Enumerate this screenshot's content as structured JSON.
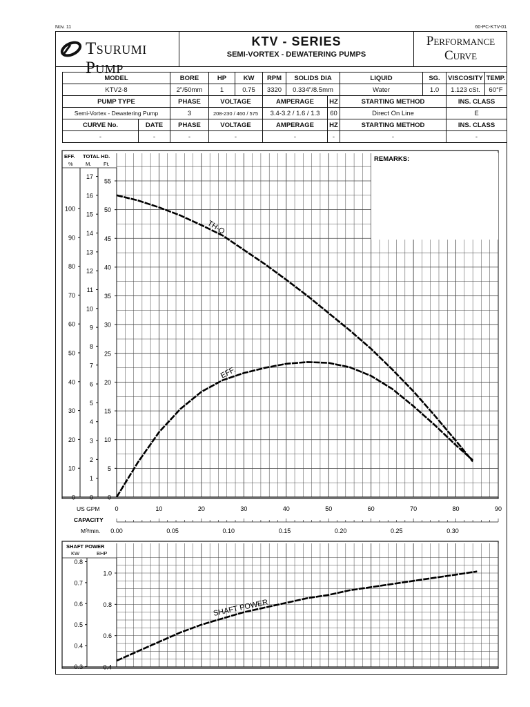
{
  "doc": {
    "date_code": "Nov. 11",
    "doc_code": "60-PC-KTV-01",
    "brand": "Tsurumi Pump",
    "series_title": "KTV - SERIES",
    "series_subtitle": "SEMI-VORTEX - DEWATERING PUMPS",
    "perf_line1": "Performance",
    "perf_line2": "Curve"
  },
  "spec": {
    "row1_headers": [
      "MODEL",
      "BORE",
      "HP",
      "KW",
      "RPM",
      "SOLIDS DIA",
      "LIQUID",
      "SG.",
      "VISCOSITY",
      "TEMP."
    ],
    "row1_values": [
      "KTV2-8",
      "2\"/50mm",
      "1",
      "0.75",
      "3320",
      "0.334\"/8.5mm",
      "Water",
      "1.0",
      "1.123 cSt.",
      "60°F"
    ],
    "row2_headers": [
      "PUMP TYPE",
      "PHASE",
      "VOLTAGE",
      "AMPERAGE",
      "HZ",
      "STARTING METHOD",
      "INS. CLASS"
    ],
    "row2_values": [
      "Semi-Vortex - Dewatering Pump",
      "3",
      "208-230 / 460 / 575",
      "3.4-3.2 / 1.6 / 1.3",
      "60",
      "Direct On Line",
      "E"
    ],
    "row3_headers": [
      "CURVE No.",
      "DATE",
      "PHASE",
      "VOLTAGE",
      "AMPERAGE",
      "HZ",
      "STARTING METHOD",
      "INS. CLASS"
    ],
    "row3_values": [
      "-",
      "-",
      "-",
      "-",
      "-",
      "-",
      "-",
      "-"
    ]
  },
  "labels": {
    "eff": "EFF.",
    "total_hd": "TOTAL HD.",
    "eff_unit": "%",
    "m_unit": "M.",
    "ft_unit": "Ft.",
    "remarks": "REMARKS:",
    "us_gpm": "US GPM",
    "capacity": "CAPACITY",
    "m3min": "M³/min.",
    "shaft_power": "SHAFT POWER",
    "kw": "KW",
    "bhp": "BHP"
  },
  "chart_data": [
    {
      "type": "line",
      "title": "",
      "xlabel": "CAPACITY",
      "x_unit": "US GPM",
      "x_unit2": "M³/min.",
      "xlim": [
        0,
        90
      ],
      "x_ticks": [
        0,
        10,
        20,
        30,
        40,
        50,
        60,
        70,
        80,
        90
      ],
      "x2_ticks": [
        "0.00",
        "0.05",
        "0.10",
        "0.15",
        "0.20",
        "0.25",
        "0.30"
      ],
      "ylim_ft": [
        0,
        55
      ],
      "ft_ticks": [
        0,
        5,
        10,
        15,
        20,
        25,
        30,
        35,
        40,
        45,
        50,
        55
      ],
      "m_ticks": [
        0,
        1,
        2,
        3,
        4,
        5,
        6,
        7,
        8,
        9,
        10,
        11,
        12,
        13,
        14,
        15,
        16,
        17
      ],
      "eff_ticks": [
        0,
        10,
        20,
        30,
        40,
        50,
        60,
        70,
        80,
        90,
        100
      ],
      "grid": true,
      "series": [
        {
          "name": "TH-Q",
          "unit": "Ft.",
          "x": [
            0,
            5,
            10,
            15,
            20,
            25,
            30,
            35,
            40,
            45,
            50,
            55,
            60,
            65,
            70,
            75,
            80,
            84
          ],
          "y": [
            52.5,
            51.6,
            50.4,
            49.0,
            47.3,
            45.5,
            43.0,
            40.5,
            37.8,
            35.0,
            32.0,
            29.0,
            25.8,
            22.2,
            18.4,
            14.2,
            9.8,
            6.2
          ]
        },
        {
          "name": "EFF.",
          "unit": "%",
          "x": [
            0,
            5,
            10,
            15,
            20,
            25,
            30,
            35,
            40,
            45,
            50,
            55,
            60,
            65,
            70,
            75,
            80,
            84
          ],
          "y": [
            0,
            12,
            22.5,
            30.5,
            36.5,
            40.5,
            43.0,
            44.8,
            46.2,
            46.8,
            46.5,
            45.0,
            42.0,
            37.5,
            31.5,
            25.0,
            18.0,
            12.8
          ]
        }
      ]
    },
    {
      "type": "line",
      "title": "SHAFT POWER",
      "xlim": [
        0,
        90
      ],
      "ylim_bhp": [
        0.4,
        1.1
      ],
      "bhp_ticks": [
        0.4,
        0.6,
        0.8,
        1.0
      ],
      "kw_ticks": [
        0.3,
        0.4,
        0.5,
        0.6,
        0.7,
        0.8
      ],
      "grid": true,
      "series": [
        {
          "name": "SHAFT POWER",
          "unit": "BHP",
          "x": [
            0,
            5,
            10,
            15,
            20,
            25,
            30,
            35,
            40,
            45,
            50,
            55,
            60,
            65,
            70,
            75,
            80,
            85
          ],
          "y": [
            0.44,
            0.5,
            0.56,
            0.62,
            0.67,
            0.71,
            0.75,
            0.78,
            0.81,
            0.84,
            0.86,
            0.89,
            0.91,
            0.93,
            0.95,
            0.97,
            0.99,
            1.01
          ]
        }
      ]
    }
  ]
}
